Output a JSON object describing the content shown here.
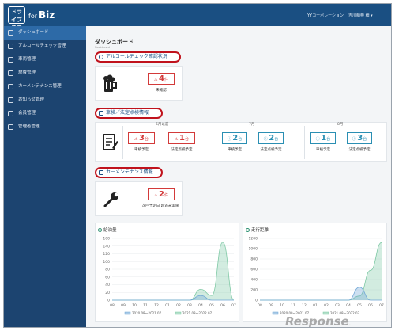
{
  "header": {
    "logo_text": "ドライブ\nスコア",
    "product_prefix": "for",
    "product_name": "Biz",
    "company": "YYコーポレーション",
    "user": "吉川萌亜 様 ▾"
  },
  "sidebar": {
    "items": [
      {
        "label": "ダッシュボード",
        "icon": "home-icon",
        "active": true
      },
      {
        "label": "アルコールチェック管理",
        "icon": "clipboard-icon"
      },
      {
        "label": "車両管理",
        "icon": "car-icon"
      },
      {
        "label": "燃費管理",
        "icon": "fuel-icon"
      },
      {
        "label": "カーメンテナンス管理",
        "icon": "wrench-icon"
      },
      {
        "label": "お知らせ管理",
        "icon": "info-icon"
      },
      {
        "label": "会員管理",
        "icon": "users-icon"
      },
      {
        "label": "管理者管理",
        "icon": "id-card-icon"
      }
    ]
  },
  "page": {
    "title": "ダッシュボード",
    "subtitle": "Dashboard"
  },
  "alcohol": {
    "title": "アルコールチェック確認状況",
    "icon": "beer-mug-icon",
    "count": "4",
    "unit": "件",
    "label": "未確認"
  },
  "inspection": {
    "title": "車検／法定点検情報",
    "icon": "checklist-icon",
    "months": [
      {
        "label": "6月以前",
        "items": [
          {
            "count": "3",
            "unit": "台",
            "label": "車検予定",
            "tone": "red"
          },
          {
            "count": "1",
            "unit": "台",
            "label": "法定点検予定",
            "tone": "red"
          }
        ]
      },
      {
        "label": "7月",
        "items": [
          {
            "count": "2",
            "unit": "台",
            "label": "車検予定",
            "tone": "blue"
          },
          {
            "count": "2",
            "unit": "台",
            "label": "法定点検予定",
            "tone": "blue"
          }
        ]
      },
      {
        "label": "8月",
        "items": [
          {
            "count": "1",
            "unit": "台",
            "label": "車検予定",
            "tone": "blue"
          },
          {
            "count": "3",
            "unit": "台",
            "label": "法定点検予定",
            "tone": "blue"
          }
        ]
      }
    ]
  },
  "maintenance": {
    "title": "カーメンテナンス情報",
    "icon": "wrench-icon",
    "count": "2",
    "unit": "件",
    "label": "次回予定日 超過未実施"
  },
  "colors": {
    "header": "#1a4f82",
    "sidebar": "#1c4470",
    "sidebar_active": "#2d6aa7",
    "alert_red": "#d33a3a",
    "info_blue": "#2a8fb3",
    "highlight_ring": "#c0121c",
    "series_blue": "#6fa6d6",
    "series_green": "#7fc9a5"
  },
  "chart_data": [
    {
      "type": "area",
      "title": "給油量",
      "x": [
        "08",
        "09",
        "10",
        "11",
        "12",
        "01",
        "02",
        "03",
        "04",
        "05",
        "06",
        "07"
      ],
      "yticks": [
        0,
        20,
        40,
        60,
        80,
        100,
        120,
        140,
        160
      ],
      "ylim": [
        0,
        160
      ],
      "legend_position": "bottom",
      "series": [
        {
          "name": "2020.08〜2021.07",
          "values": [
            0,
            0,
            0,
            0,
            0,
            0,
            0,
            0,
            12,
            0,
            0,
            0
          ],
          "color": "#6fa6d6"
        },
        {
          "name": "2021.08〜2022.07",
          "values": [
            0,
            0,
            0,
            0,
            0,
            0,
            0,
            0,
            28,
            12,
            150,
            0
          ],
          "color": "#7fc9a5"
        }
      ]
    },
    {
      "type": "area",
      "title": "走行距離",
      "x": [
        "08",
        "09",
        "10",
        "11",
        "12",
        "01",
        "02",
        "03",
        "04",
        "05",
        "06",
        "07"
      ],
      "yticks": [
        0,
        200,
        400,
        600,
        800,
        1000,
        1200
      ],
      "ylim": [
        0,
        1200
      ],
      "legend_position": "bottom",
      "series": [
        {
          "name": "2020.08〜2021.07",
          "values": [
            0,
            0,
            0,
            0,
            0,
            0,
            0,
            0,
            0,
            250,
            0,
            0
          ],
          "color": "#6fa6d6"
        },
        {
          "name": "2021.08〜2022.07",
          "values": [
            0,
            0,
            0,
            0,
            0,
            0,
            0,
            0,
            0,
            80,
            580,
            1120
          ],
          "color": "#7fc9a5"
        }
      ]
    }
  ],
  "watermark": {
    "text": "Response",
    "suffix": "."
  }
}
